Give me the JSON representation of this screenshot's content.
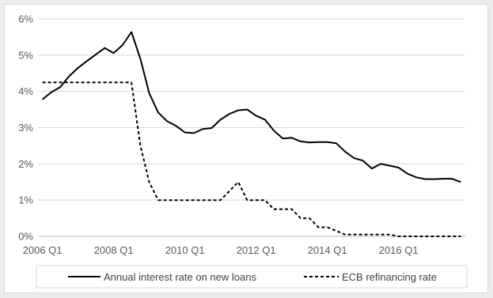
{
  "chart_data": {
    "type": "line",
    "title": "",
    "xlabel": "",
    "ylabel": "",
    "ylim": [
      0,
      6
    ],
    "y_ticks": [
      "0%",
      "1%",
      "2%",
      "3%",
      "4%",
      "5%",
      "6%"
    ],
    "x_tick_labels": [
      "2006 Q1",
      "2008 Q1",
      "2010 Q1",
      "2012 Q1",
      "2014 Q1",
      "2016 Q1"
    ],
    "x": [
      "2006 Q1",
      "2006 Q2",
      "2006 Q3",
      "2006 Q4",
      "2007 Q1",
      "2007 Q2",
      "2007 Q3",
      "2007 Q4",
      "2008 Q1",
      "2008 Q2",
      "2008 Q3",
      "2008 Q4",
      "2009 Q1",
      "2009 Q2",
      "2009 Q3",
      "2009 Q4",
      "2010 Q1",
      "2010 Q2",
      "2010 Q3",
      "2010 Q4",
      "2011 Q1",
      "2011 Q2",
      "2011 Q3",
      "2011 Q4",
      "2012 Q1",
      "2012 Q2",
      "2012 Q3",
      "2012 Q4",
      "2013 Q1",
      "2013 Q2",
      "2013 Q3",
      "2013 Q4",
      "2014 Q1",
      "2014 Q2",
      "2014 Q3",
      "2014 Q4",
      "2015 Q1",
      "2015 Q2",
      "2015 Q3",
      "2015 Q4",
      "2016 Q1",
      "2016 Q2",
      "2016 Q3",
      "2016 Q4",
      "2017 Q1",
      "2017 Q2",
      "2017 Q3",
      "2017 Q4"
    ],
    "series": [
      {
        "name": "Annual interest rate on new loans",
        "style": "solid",
        "color": "#000000",
        "values": [
          3.78,
          3.98,
          4.12,
          4.42,
          4.65,
          4.84,
          5.02,
          5.2,
          5.06,
          5.28,
          5.64,
          4.9,
          3.95,
          3.42,
          3.18,
          3.05,
          2.87,
          2.85,
          2.96,
          2.99,
          3.22,
          3.38,
          3.48,
          3.5,
          3.33,
          3.22,
          2.92,
          2.7,
          2.72,
          2.62,
          2.59,
          2.6,
          2.6,
          2.57,
          2.34,
          2.16,
          2.09,
          1.87,
          2.0,
          1.95,
          1.9,
          1.73,
          1.63,
          1.58,
          1.58,
          1.59,
          1.59,
          1.5
        ]
      },
      {
        "name": "ECB refinancing rate",
        "style": "dashed",
        "color": "#000000",
        "values": [
          4.25,
          4.25,
          4.25,
          4.25,
          4.25,
          4.25,
          4.25,
          4.25,
          4.25,
          4.25,
          4.25,
          2.5,
          1.5,
          1.0,
          1.0,
          1.0,
          1.0,
          1.0,
          1.0,
          1.0,
          1.0,
          1.25,
          1.5,
          1.0,
          1.0,
          1.0,
          0.75,
          0.75,
          0.75,
          0.5,
          0.5,
          0.25,
          0.25,
          0.15,
          0.05,
          0.05,
          0.05,
          0.05,
          0.05,
          0.05,
          0.0,
          0.0,
          0.0,
          0.0,
          0.0,
          0.0,
          0.0,
          0.0
        ]
      }
    ],
    "grid": true,
    "legend_position": "bottom"
  },
  "colors": {
    "gridline": "#d9d9d9",
    "axis": "#bfbfbf",
    "line": "#000000",
    "background": "#ffffff"
  }
}
